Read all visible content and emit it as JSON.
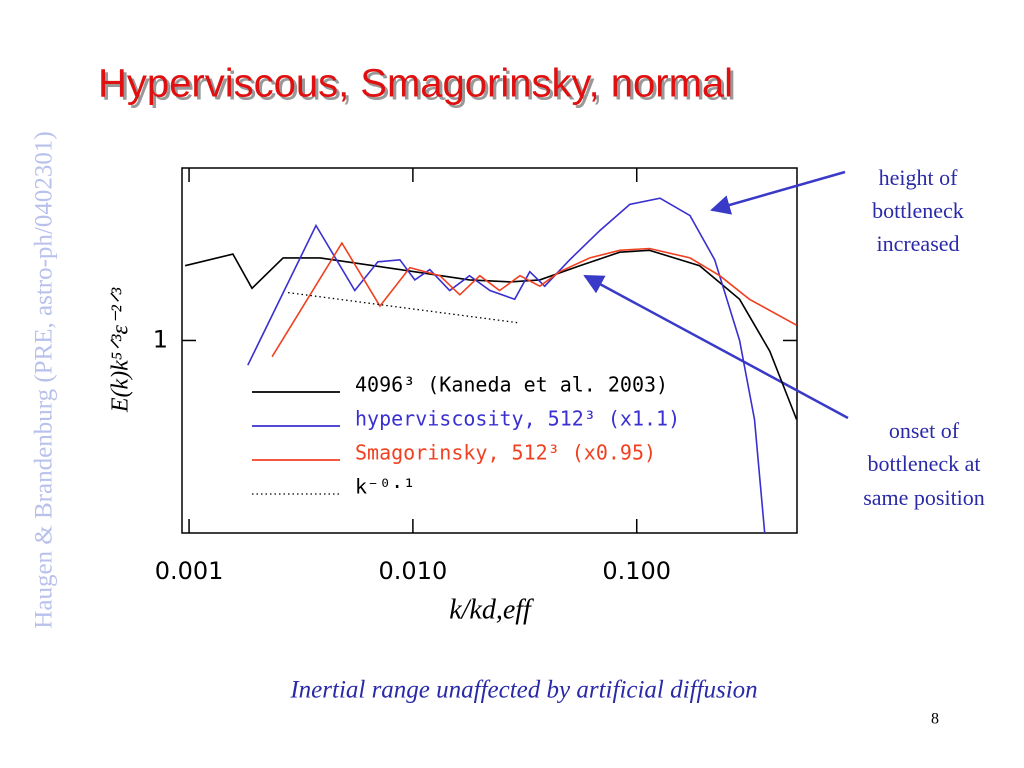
{
  "slide": {
    "side_note": "Haugen & Brandenburg (PRE, astro-ph/0402301)",
    "caption": "Inertial range unaffected by artificial diffusion",
    "page_number": "8",
    "annotations": [
      [
        "height of",
        "bottleneck",
        "increased"
      ],
      [
        "onset of",
        "bottleneck at",
        "same position"
      ]
    ]
  },
  "chart_data": {
    "type": "line",
    "title": "Hyperviscous, Smagorinsky, normal",
    "x_label": "k/kd,eff",
    "y_label": "E(k)k⁵ᐟ³ε⁻²ᐟ³",
    "xscale": "log",
    "yscale": "log",
    "xlim": [
      0.00093,
      0.52
    ],
    "ylim": [
      0.48,
      1.93
    ],
    "xticks": [
      0.001,
      {
        "value": 0.01,
        "label": "0.010"
      },
      {
        "value": 0.1,
        "label": "0.100"
      }
    ],
    "yticks": [
      1
    ],
    "series": [
      {
        "name": "4096³ (Kaneda et al. 2003)",
        "color": "#000000",
        "style": "solid",
        "x": [
          0.00096,
          0.00157,
          0.00191,
          0.00263,
          0.00385,
          0.00875,
          0.0179,
          0.0271,
          0.0369,
          0.0557,
          0.084,
          0.114,
          0.191,
          0.288,
          0.393,
          0.518
        ],
        "values": [
          1.33,
          1.39,
          1.22,
          1.37,
          1.37,
          1.31,
          1.26,
          1.25,
          1.26,
          1.33,
          1.4,
          1.41,
          1.33,
          1.17,
          0.96,
          0.74
        ]
      },
      {
        "name": "hyperviscosity, 512³ (x1.1)",
        "color": "#3a2fd0",
        "style": "solid",
        "x": [
          0.00183,
          0.00369,
          0.0055,
          0.00698,
          0.00875,
          0.0102,
          0.0119,
          0.0146,
          0.0179,
          0.0221,
          0.0285,
          0.0333,
          0.0388,
          0.0502,
          0.0684,
          0.0931,
          0.127,
          0.173,
          0.223,
          0.288,
          0.336,
          0.373
        ],
        "values": [
          0.91,
          1.55,
          1.21,
          1.35,
          1.36,
          1.26,
          1.31,
          1.21,
          1.28,
          1.21,
          1.17,
          1.3,
          1.23,
          1.36,
          1.52,
          1.68,
          1.72,
          1.61,
          1.36,
          1.0,
          0.74,
          0.48
        ]
      },
      {
        "name": "Smagorinsky, 512³ (x0.95)",
        "color": "#f04020",
        "style": "solid",
        "x": [
          0.00235,
          0.00482,
          0.00712,
          0.0097,
          0.0132,
          0.0162,
          0.0199,
          0.0244,
          0.0301,
          0.0369,
          0.0453,
          0.0617,
          0.084,
          0.114,
          0.173,
          0.235,
          0.319,
          0.518
        ],
        "values": [
          0.94,
          1.45,
          1.14,
          1.32,
          1.28,
          1.19,
          1.28,
          1.21,
          1.28,
          1.23,
          1.3,
          1.37,
          1.41,
          1.42,
          1.37,
          1.28,
          1.17,
          1.06
        ]
      },
      {
        "name": "k⁻⁰·¹",
        "color": "#000000",
        "style": "dotted",
        "x": [
          0.00277,
          0.0294
        ],
        "values": [
          1.2,
          1.07
        ]
      }
    ]
  }
}
